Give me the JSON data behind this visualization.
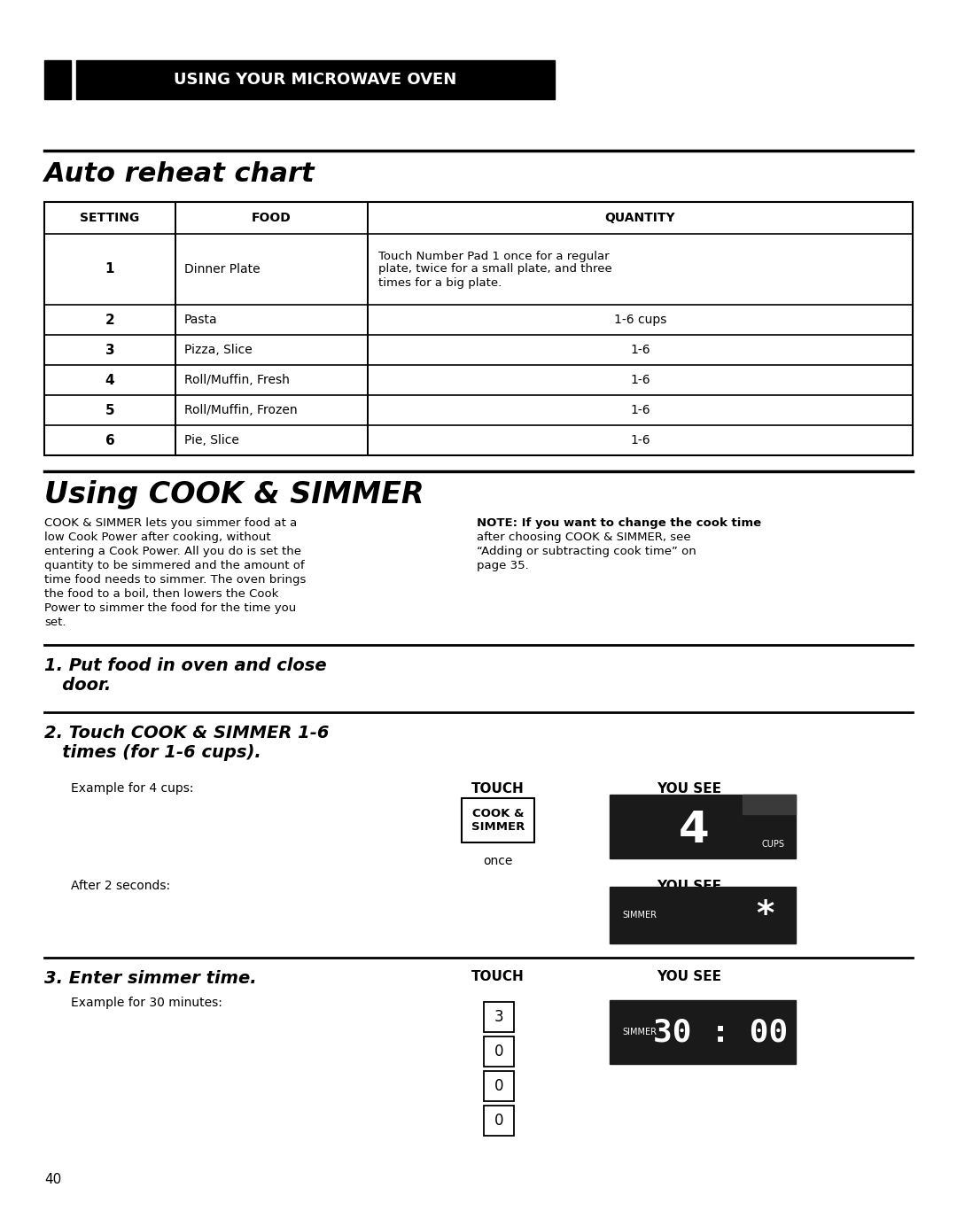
{
  "bg_color": "#ffffff",
  "header_bg": "#000000",
  "header_text": "USING YOUR MICROWAVE OVEN",
  "header_text_color": "#ffffff",
  "section1_title": "Auto reheat chart",
  "table_headers": [
    "SETTING",
    "FOOD",
    "QUANTITY"
  ],
  "table_rows": [
    [
      "1",
      "Dinner Plate",
      "Touch Number Pad 1 once for a regular\nplate, twice for a small plate, and three\ntimes for a big plate."
    ],
    [
      "2",
      "Pasta",
      "1-6 cups"
    ],
    [
      "3",
      "Pizza, Slice",
      "1-6"
    ],
    [
      "4",
      "Roll/Muffin, Fresh",
      "1-6"
    ],
    [
      "5",
      "Roll/Muffin, Frozen",
      "1-6"
    ],
    [
      "6",
      "Pie, Slice",
      "1-6"
    ]
  ],
  "section2_title": "Using COOK & SIMMER",
  "body_left": "COOK & SIMMER lets you simmer food at a\nlow Cook Power after cooking, without\nentering a Cook Power. All you do is set the\nquantity to be simmered and the amount of\ntime food needs to simmer. The oven brings\nthe food to a boil, then lowers the Cook\nPower to simmer the food for the time you\nset.",
  "body_right": "NOTE: If you want to change the cook time\nafter choosing COOK & SIMMER, see\n“Adding or subtracting cook time” on\npage 35.",
  "step1_title_line1": "1. Put food in oven and close",
  "step1_title_line2": "   door.",
  "step2_title_line1": "2. Touch COOK & SIMMER 1-6",
  "step2_title_line2": "   times (for 1-6 cups).",
  "example1_label": "Example for 4 cups:",
  "touch_label": "TOUCH",
  "you_see_label": "YOU SEE",
  "button_text_line1": "COOK &",
  "button_text_line2": "SIMMER",
  "once_label": "once",
  "after_label": "After 2 seconds:",
  "you_see2_label": "YOU SEE",
  "step3_title": "3. Enter simmer time.",
  "touch_label2": "TOUCH",
  "you_see3_label": "YOU SEE",
  "example2_label": "Example for 30 minutes:",
  "button_numbers": [
    "3",
    "0",
    "0",
    "0"
  ],
  "page_number": "40",
  "display_number": "4",
  "display_cups": "CUPS",
  "display_simmer": "SIMMER",
  "display_time": "30 : 00",
  "display_simmer2": "SIMMER"
}
